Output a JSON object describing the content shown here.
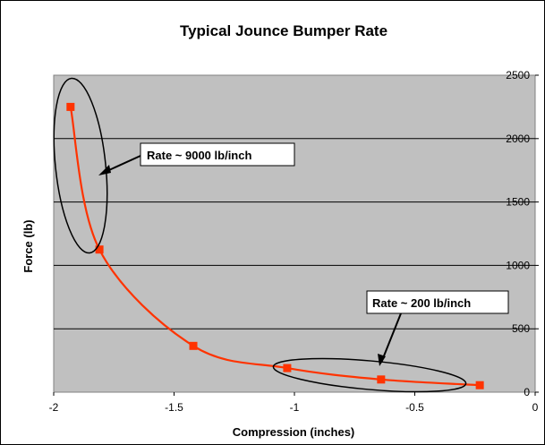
{
  "chart_data": {
    "type": "line",
    "title": "Typical Jounce Bumper Rate",
    "xlabel": "Compression (inches)",
    "ylabel": "Force (lb)",
    "xlim": [
      -2,
      0
    ],
    "ylim": [
      0,
      2500
    ],
    "x_ticks": [
      -2,
      -1.5,
      -1,
      -0.5,
      0
    ],
    "x_tick_labels": [
      "-2",
      "-1.5",
      "-1",
      "-0.5",
      "0"
    ],
    "y_ticks": [
      0,
      500,
      1000,
      1500,
      2000,
      2500
    ],
    "y_tick_labels": [
      "0",
      "500",
      "1000",
      "1500",
      "2000",
      "2500"
    ],
    "y_axis_side": "right",
    "grid": "horizontal",
    "legend": "none",
    "series": [
      {
        "color": "#ff3300",
        "marker": "square",
        "x": [
          -1.93,
          -1.81,
          -1.42,
          -1.03,
          -0.64,
          -0.23
        ],
        "y": [
          2250,
          1125,
          365,
          190,
          100,
          55
        ]
      }
    ],
    "annotations": [
      {
        "text": "Rate ~ 9000 lb/inch"
      },
      {
        "text": "Rate ~ 200 lb/inch"
      }
    ],
    "colors": {
      "plot_background": "#c0c0c0",
      "series": "#ff3300",
      "gridline": "#000000"
    }
  }
}
